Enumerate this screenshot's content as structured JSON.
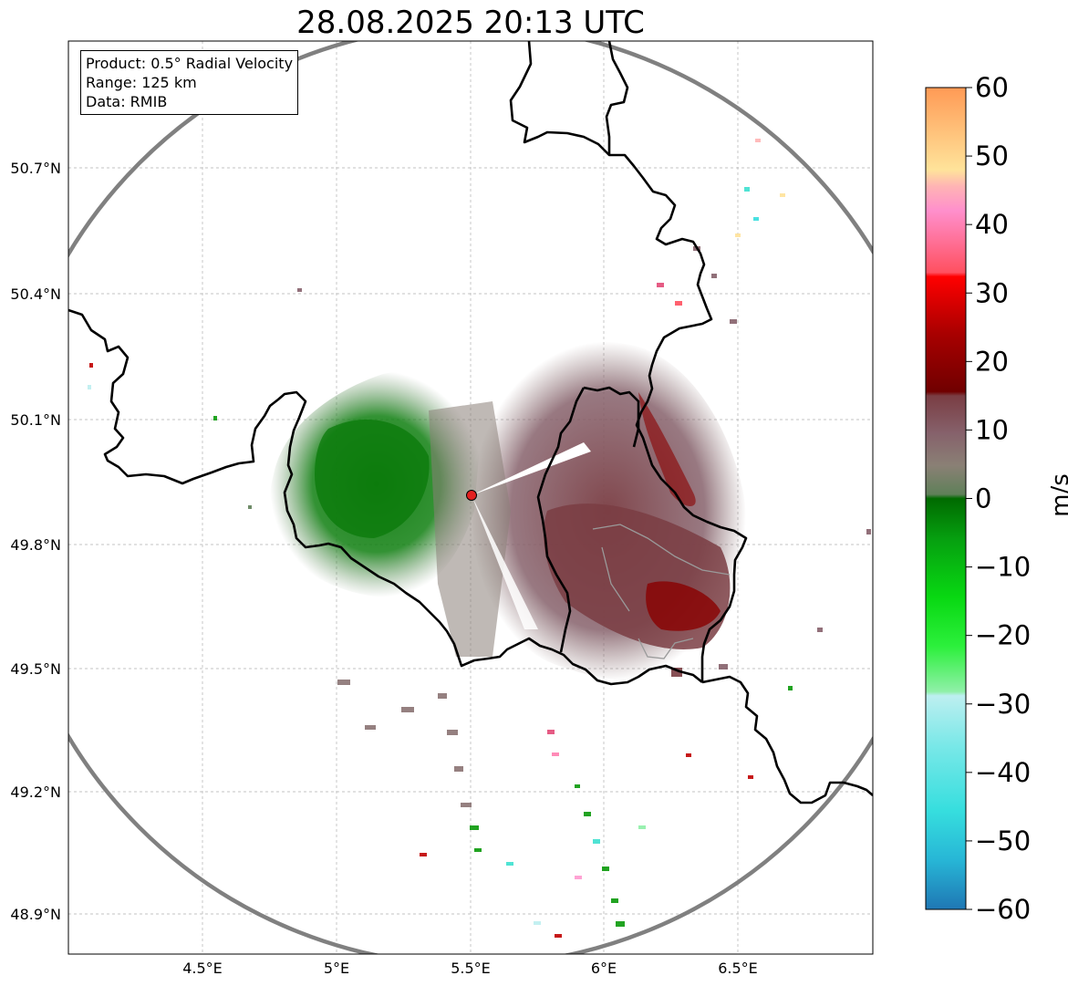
{
  "title": "28.08.2025 20:13 UTC",
  "info": {
    "product": "Product: 0.5° Radial Velocity",
    "range": "Range: 125 km",
    "data": "Data: RMIB"
  },
  "axes": {
    "lat_ticks": [
      "50.7°N",
      "50.4°N",
      "50.1°N",
      "49.8°N",
      "49.5°N",
      "49.2°N",
      "48.9°N"
    ],
    "lon_ticks": [
      "4.5°E",
      "5°E",
      "5.5°E",
      "6°E",
      "6.5°E"
    ]
  },
  "colorbar": {
    "label": "m/s",
    "ticks": [
      "60",
      "50",
      "40",
      "30",
      "20",
      "10",
      "0",
      "−10",
      "−20",
      "−30",
      "−40",
      "−50",
      "−60"
    ],
    "range": [
      -60,
      60
    ]
  },
  "colors": {
    "range_ring": "#808080",
    "border": "#000000",
    "radar_site": "#e32020",
    "approaching": "#0a7a0a",
    "receding": "#7a3d43",
    "near_zero": "#8a7373"
  },
  "chart_data": {
    "type": "heatmap",
    "title": "28.08.2025 20:13 UTC",
    "xlabel": "",
    "ylabel": "",
    "x_ticks": [
      "4.5°E",
      "5°E",
      "5.5°E",
      "6°E",
      "6.5°E"
    ],
    "y_ticks": [
      "50.7°N",
      "50.4°N",
      "50.1°N",
      "49.8°N",
      "49.5°N",
      "49.2°N",
      "48.9°N"
    ],
    "xlim": [
      4.0,
      7.0
    ],
    "ylim": [
      48.8,
      51.0
    ],
    "colorbar_range": [
      -60,
      60
    ],
    "colorbar_label": "m/s",
    "grid": true,
    "radar_site": {
      "lon": 5.5,
      "lat": 49.91
    }
  }
}
